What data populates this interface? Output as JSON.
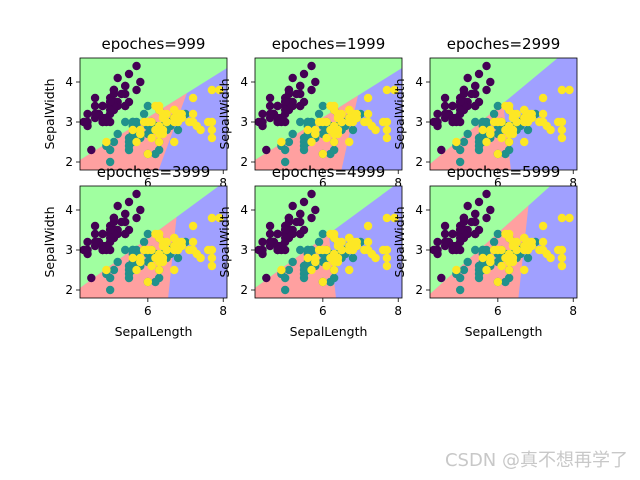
{
  "watermark": "CSDN @真不想再学了",
  "chart_data": {
    "type": "scatter",
    "description_layout": "2x3 grid of decision-boundary scatter plots",
    "xlabel": "SepalLength",
    "ylabel": "SepalWidth",
    "xlim": [
      4.2,
      8.1
    ],
    "ylim": [
      1.8,
      4.6
    ],
    "xticks": [
      6,
      8
    ],
    "yticks": [
      2,
      3,
      4
    ],
    "region_colors": {
      "class0": "#a0ffa0",
      "class1": "#ffa0a0",
      "class2": "#a0a0ff"
    },
    "class_colors": {
      "class0": "#440154",
      "class1": "#21918c",
      "class2": "#fde725"
    },
    "panels": [
      {
        "title": "epoches=999",
        "boundary_01": [
          [
            4.2,
            2.05
          ],
          [
            8.1,
            4.35
          ]
        ],
        "boundary_12": [
          [
            5.8,
            1.8
          ],
          [
            7.6,
            4.6
          ]
        ]
      },
      {
        "title": "epoches=1999",
        "boundary_01": [
          [
            4.2,
            2.05
          ],
          [
            8.1,
            4.35
          ]
        ],
        "boundary_12": [
          [
            6.2,
            1.8
          ],
          [
            7.3,
            4.6
          ]
        ]
      },
      {
        "title": "epoches=2999",
        "boundary_01": [
          [
            4.2,
            1.95
          ],
          [
            8.1,
            5.0
          ]
        ],
        "boundary_12": [
          [
            6.5,
            1.8
          ],
          [
            5.9,
            4.6
          ]
        ]
      },
      {
        "title": "epoches=3999",
        "boundary_01": [
          [
            4.2,
            2.05
          ],
          [
            8.1,
            4.75
          ]
        ],
        "boundary_12": [
          [
            6.4,
            1.8
          ],
          [
            6.9,
            4.6
          ]
        ]
      },
      {
        "title": "epoches=4999",
        "boundary_01": [
          [
            4.2,
            2.05
          ],
          [
            8.1,
            4.75
          ]
        ],
        "boundary_12": [
          [
            6.5,
            1.8
          ],
          [
            5.9,
            4.6
          ]
        ]
      },
      {
        "title": "epoches=5999",
        "boundary_01": [
          [
            4.2,
            1.9
          ],
          [
            8.1,
            5.2
          ]
        ],
        "boundary_12": [
          [
            6.4,
            1.8
          ],
          [
            6.9,
            4.6
          ]
        ]
      }
    ],
    "series": [
      {
        "name": "",
        "class": 0,
        "points": [
          [
            5.1,
            3.5
          ],
          [
            4.9,
            3.0
          ],
          [
            4.7,
            3.2
          ],
          [
            4.6,
            3.1
          ],
          [
            5.0,
            3.6
          ],
          [
            5.4,
            3.9
          ],
          [
            4.6,
            3.4
          ],
          [
            5.0,
            3.4
          ],
          [
            4.4,
            2.9
          ],
          [
            4.9,
            3.1
          ],
          [
            5.4,
            3.7
          ],
          [
            4.8,
            3.4
          ],
          [
            4.8,
            3.0
          ],
          [
            4.3,
            3.0
          ],
          [
            5.8,
            4.0
          ],
          [
            5.7,
            4.4
          ],
          [
            5.4,
            3.9
          ],
          [
            5.1,
            3.5
          ],
          [
            5.7,
            3.8
          ],
          [
            5.1,
            3.8
          ],
          [
            5.4,
            3.4
          ],
          [
            5.1,
            3.7
          ],
          [
            4.6,
            3.6
          ],
          [
            5.1,
            3.3
          ],
          [
            4.8,
            3.4
          ],
          [
            5.0,
            3.0
          ],
          [
            5.0,
            3.4
          ],
          [
            5.2,
            3.5
          ],
          [
            5.2,
            3.4
          ],
          [
            4.7,
            3.2
          ],
          [
            4.8,
            3.1
          ],
          [
            5.4,
            3.4
          ],
          [
            5.2,
            4.1
          ],
          [
            5.5,
            4.2
          ],
          [
            4.9,
            3.1
          ],
          [
            5.0,
            3.2
          ],
          [
            5.5,
            3.5
          ],
          [
            4.4,
            3.0
          ],
          [
            5.1,
            3.4
          ],
          [
            5.0,
            3.5
          ],
          [
            4.5,
            2.3
          ],
          [
            4.4,
            3.2
          ],
          [
            5.0,
            3.5
          ],
          [
            5.1,
            3.8
          ],
          [
            4.8,
            3.0
          ],
          [
            5.1,
            3.8
          ],
          [
            4.6,
            3.2
          ],
          [
            5.3,
            3.7
          ],
          [
            5.0,
            3.3
          ]
        ]
      },
      {
        "name": "",
        "class": 1,
        "points": [
          [
            7.0,
            3.2
          ],
          [
            6.4,
            3.2
          ],
          [
            6.9,
            3.1
          ],
          [
            5.5,
            2.3
          ],
          [
            6.5,
            2.8
          ],
          [
            5.7,
            2.8
          ],
          [
            6.3,
            3.3
          ],
          [
            4.9,
            2.4
          ],
          [
            6.6,
            2.9
          ],
          [
            5.2,
            2.7
          ],
          [
            5.0,
            2.0
          ],
          [
            5.9,
            3.0
          ],
          [
            6.0,
            2.2
          ],
          [
            6.1,
            2.9
          ],
          [
            5.6,
            2.9
          ],
          [
            6.7,
            3.1
          ],
          [
            5.6,
            3.0
          ],
          [
            5.8,
            2.7
          ],
          [
            6.2,
            2.2
          ],
          [
            5.6,
            2.5
          ],
          [
            5.9,
            3.2
          ],
          [
            6.1,
            2.8
          ],
          [
            6.3,
            2.5
          ],
          [
            6.1,
            2.8
          ],
          [
            6.4,
            2.9
          ],
          [
            6.6,
            3.0
          ],
          [
            6.8,
            2.8
          ],
          [
            6.7,
            3.0
          ],
          [
            6.0,
            2.9
          ],
          [
            5.7,
            2.6
          ],
          [
            5.5,
            2.4
          ],
          [
            5.8,
            2.7
          ],
          [
            6.0,
            2.7
          ],
          [
            5.4,
            3.0
          ],
          [
            6.0,
            3.4
          ],
          [
            6.7,
            3.1
          ],
          [
            6.3,
            2.3
          ],
          [
            5.6,
            3.0
          ],
          [
            5.5,
            2.5
          ],
          [
            5.5,
            2.6
          ],
          [
            6.1,
            3.0
          ],
          [
            5.8,
            2.6
          ],
          [
            5.0,
            2.3
          ],
          [
            5.6,
            2.7
          ],
          [
            5.7,
            3.0
          ],
          [
            5.7,
            2.9
          ],
          [
            6.2,
            2.9
          ],
          [
            5.1,
            2.5
          ],
          [
            5.7,
            2.8
          ]
        ]
      },
      {
        "name": "",
        "class": 2,
        "points": [
          [
            6.3,
            3.3
          ],
          [
            5.8,
            2.7
          ],
          [
            7.1,
            3.0
          ],
          [
            6.3,
            2.9
          ],
          [
            6.5,
            3.0
          ],
          [
            7.6,
            3.0
          ],
          [
            4.9,
            2.5
          ],
          [
            7.3,
            2.9
          ],
          [
            6.7,
            2.5
          ],
          [
            7.2,
            3.6
          ],
          [
            6.5,
            3.2
          ],
          [
            6.4,
            2.7
          ],
          [
            6.8,
            3.0
          ],
          [
            5.7,
            2.5
          ],
          [
            5.8,
            2.8
          ],
          [
            6.4,
            3.2
          ],
          [
            6.5,
            3.0
          ],
          [
            7.7,
            3.8
          ],
          [
            7.7,
            2.6
          ],
          [
            6.0,
            2.2
          ],
          [
            6.9,
            3.2
          ],
          [
            5.6,
            2.8
          ],
          [
            7.7,
            2.8
          ],
          [
            6.3,
            2.7
          ],
          [
            6.7,
            3.3
          ],
          [
            7.2,
            3.2
          ],
          [
            6.2,
            2.8
          ],
          [
            6.1,
            3.0
          ],
          [
            6.4,
            2.8
          ],
          [
            7.2,
            3.0
          ],
          [
            7.4,
            2.8
          ],
          [
            7.9,
            3.8
          ],
          [
            6.4,
            2.8
          ],
          [
            6.3,
            2.8
          ],
          [
            6.1,
            2.6
          ],
          [
            7.7,
            3.0
          ],
          [
            6.3,
            3.4
          ],
          [
            6.4,
            3.1
          ],
          [
            6.0,
            3.0
          ],
          [
            6.9,
            3.1
          ],
          [
            6.7,
            3.1
          ],
          [
            6.9,
            3.1
          ],
          [
            5.8,
            2.7
          ],
          [
            6.8,
            3.2
          ],
          [
            6.7,
            3.3
          ],
          [
            6.7,
            3.0
          ],
          [
            6.3,
            2.5
          ],
          [
            6.5,
            3.0
          ],
          [
            6.2,
            3.4
          ],
          [
            5.9,
            3.0
          ]
        ]
      }
    ]
  }
}
